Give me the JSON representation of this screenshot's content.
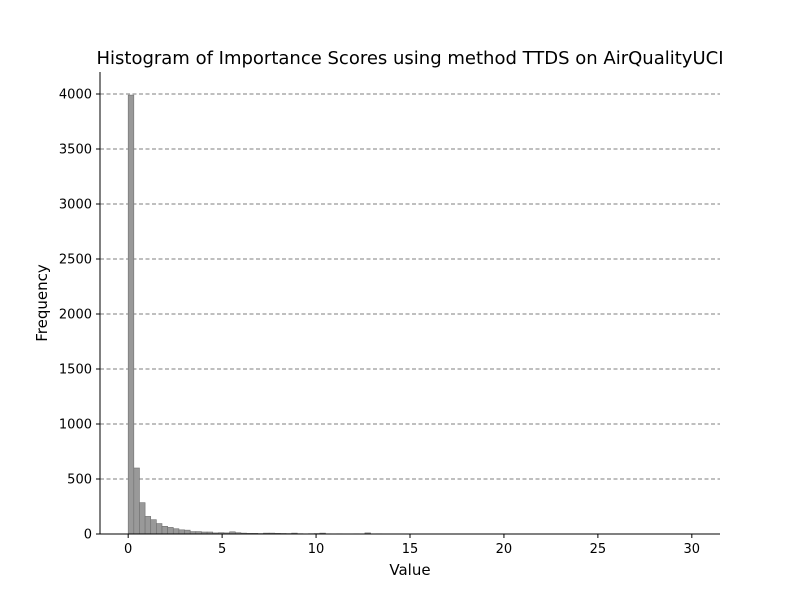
{
  "chart_data": {
    "type": "bar",
    "title": "Histogram of Importance Scores using method TTDS on AirQualityUCI",
    "xlabel": "Value",
    "ylabel": "Frequency",
    "xlim": [
      -1.5,
      31.5
    ],
    "ylim": [
      0,
      4200
    ],
    "xticks": [
      0,
      5,
      10,
      15,
      20,
      25,
      30
    ],
    "yticks": [
      0,
      500,
      1000,
      1500,
      2000,
      2500,
      3000,
      3500,
      4000
    ],
    "grid": "y-dashed",
    "bar_color": "#999999",
    "bar_edge_color": "#6f6f6f",
    "grid_color": "#555555",
    "bin_width": 0.3,
    "bins": [
      {
        "x0": 0.0,
        "count": 3990
      },
      {
        "x0": 0.3,
        "count": 600
      },
      {
        "x0": 0.6,
        "count": 285
      },
      {
        "x0": 0.9,
        "count": 160
      },
      {
        "x0": 1.2,
        "count": 130
      },
      {
        "x0": 1.5,
        "count": 95
      },
      {
        "x0": 1.8,
        "count": 70
      },
      {
        "x0": 2.1,
        "count": 60
      },
      {
        "x0": 2.4,
        "count": 48
      },
      {
        "x0": 2.7,
        "count": 38
      },
      {
        "x0": 3.0,
        "count": 35
      },
      {
        "x0": 3.3,
        "count": 22
      },
      {
        "x0": 3.6,
        "count": 22
      },
      {
        "x0": 3.9,
        "count": 18
      },
      {
        "x0": 4.2,
        "count": 18
      },
      {
        "x0": 4.5,
        "count": 10
      },
      {
        "x0": 4.8,
        "count": 12
      },
      {
        "x0": 5.1,
        "count": 10
      },
      {
        "x0": 5.4,
        "count": 20
      },
      {
        "x0": 5.7,
        "count": 12
      },
      {
        "x0": 6.0,
        "count": 8
      },
      {
        "x0": 6.3,
        "count": 6
      },
      {
        "x0": 6.6,
        "count": 6
      },
      {
        "x0": 6.9,
        "count": 4
      },
      {
        "x0": 7.2,
        "count": 8
      },
      {
        "x0": 7.5,
        "count": 8
      },
      {
        "x0": 7.8,
        "count": 6
      },
      {
        "x0": 8.1,
        "count": 5
      },
      {
        "x0": 8.4,
        "count": 4
      },
      {
        "x0": 8.7,
        "count": 8
      },
      {
        "x0": 9.0,
        "count": 3
      },
      {
        "x0": 9.3,
        "count": 2
      },
      {
        "x0": 9.6,
        "count": 3
      },
      {
        "x0": 9.9,
        "count": 4
      },
      {
        "x0": 10.2,
        "count": 8
      },
      {
        "x0": 10.5,
        "count": 2
      },
      {
        "x0": 11.1,
        "count": 2
      },
      {
        "x0": 12.0,
        "count": 2
      },
      {
        "x0": 12.6,
        "count": 10
      },
      {
        "x0": 13.2,
        "count": 2
      }
    ]
  }
}
